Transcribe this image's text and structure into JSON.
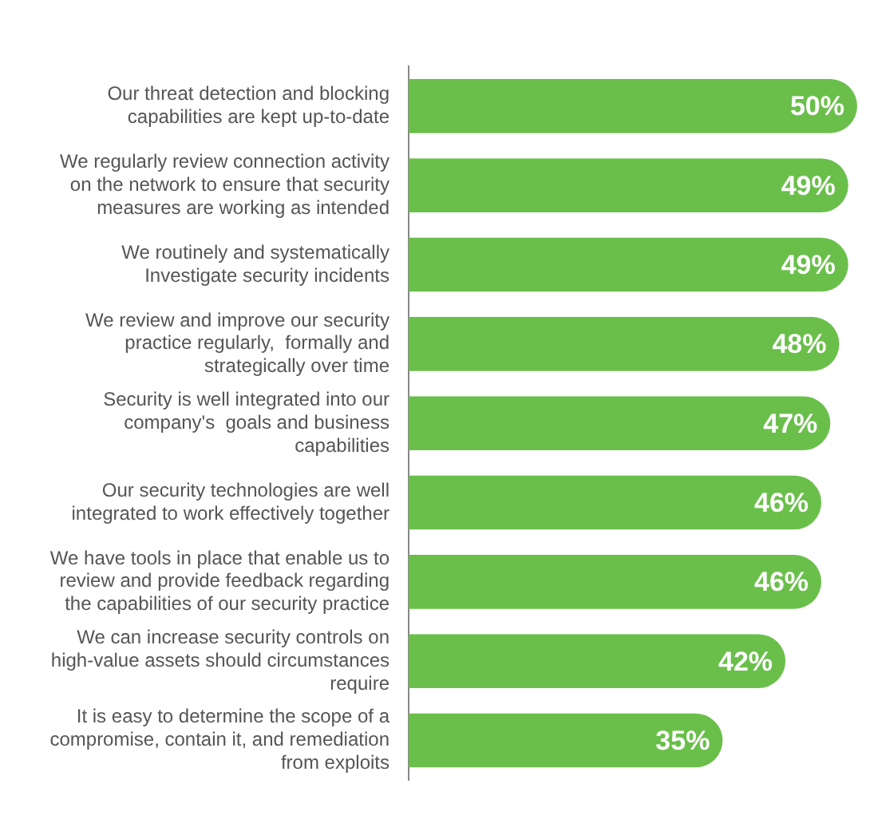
{
  "chart_data": {
    "type": "bar",
    "orientation": "horizontal",
    "value_labels": [
      "50%",
      "49%",
      "49%",
      "48%",
      "47%",
      "46%",
      "46%",
      "42%",
      "35%"
    ],
    "grid": false,
    "legend": false,
    "tick_labels": "y",
    "categories": [
      "Our threat detection and blocking capabilities are kept up-to-date",
      "We regularly review connection activity on the network to ensure that security measures are working as intended",
      "We routinely and systematically Investigate security incidents",
      "We review and improve our security practice regularly,  formally and strategically over time",
      "Security is well integrated into our company's  goals and business capabilities",
      "Our security technologies are well integrated to work effectively together",
      "We have tools in place that enable us to review and provide feedback regarding the capabilities of our security practice",
      "We can increase security controls on high-value assets should circumstances require",
      "It is easy to determine the scope of a compromise, contain it, and remediation from exploits"
    ],
    "values": [
      50,
      49,
      49,
      48,
      47,
      46,
      46,
      42,
      35
    ],
    "color": "#6abf4b"
  }
}
